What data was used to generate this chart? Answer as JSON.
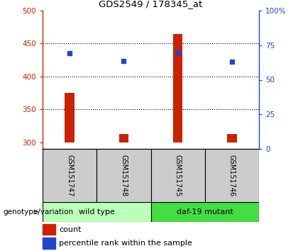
{
  "title": "GDS2549 / 178345_at",
  "samples": [
    "GSM151747",
    "GSM151748",
    "GSM151745",
    "GSM151746"
  ],
  "bar_bottoms": [
    300,
    300,
    300,
    300
  ],
  "bar_tops": [
    375,
    313,
    465,
    313
  ],
  "blue_values": [
    435,
    424,
    436,
    423
  ],
  "ylim_left": [
    290,
    500
  ],
  "ylim_right": [
    0,
    100
  ],
  "yticks_left": [
    300,
    350,
    400,
    450,
    500
  ],
  "yticks_right": [
    0,
    25,
    50,
    75,
    100
  ],
  "ytick_labels_right": [
    "0",
    "25",
    "50",
    "75",
    "100%"
  ],
  "bar_color": "#cc2200",
  "blue_color": "#2244cc",
  "groups": [
    {
      "label": "wild type",
      "indices": [
        0,
        1
      ],
      "color": "#bbffbb"
    },
    {
      "label": "daf-19 mutant",
      "indices": [
        2,
        3
      ],
      "color": "#44dd44"
    }
  ],
  "group_label": "genotype/variation",
  "legend_count": "count",
  "legend_percentile": "percentile rank within the sample",
  "axis_color_left": "#cc2200",
  "axis_color_right": "#2244cc",
  "bar_width": 0.18,
  "sample_label_color": "#cccccc",
  "grid_dotted": [
    350,
    400,
    450
  ]
}
